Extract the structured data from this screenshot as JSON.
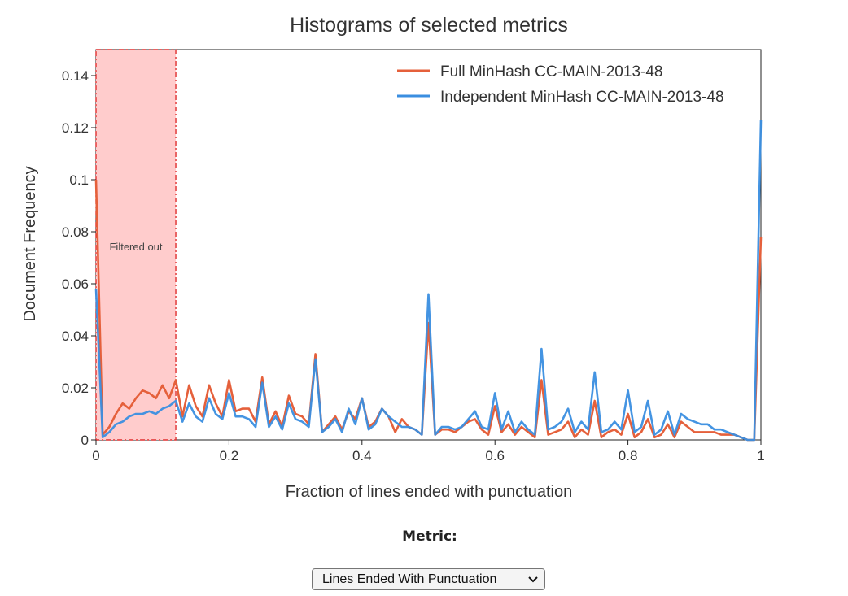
{
  "chart_data": {
    "type": "line",
    "title": "Histograms of selected metrics",
    "xlabel": "Fraction of lines ended with punctuation",
    "ylabel": "Document Frequency",
    "xlim": [
      0,
      1
    ],
    "ylim": [
      0,
      0.15
    ],
    "xticks": [
      0,
      0.2,
      0.4,
      0.6,
      0.8,
      1
    ],
    "xtick_labels": [
      "0",
      "0.2",
      "0.4",
      "0.6",
      "0.8",
      "1"
    ],
    "yticks": [
      0,
      0.02,
      0.04,
      0.06,
      0.08,
      0.1,
      0.12,
      0.14
    ],
    "ytick_labels": [
      "0",
      "0.02",
      "0.04",
      "0.06",
      "0.08",
      "0.1",
      "0.12",
      "0.14"
    ],
    "legend_position": "top-right",
    "filtered_region": {
      "x_start": 0,
      "x_end": 0.12,
      "label": "Filtered out",
      "color": "#ffcccc",
      "edge_color": "#e03030"
    },
    "series": [
      {
        "name": "Full MinHash CC-MAIN-2013-48",
        "color": "#e5603b",
        "x": [
          0,
          0.01,
          0.02,
          0.03,
          0.04,
          0.05,
          0.06,
          0.07,
          0.08,
          0.09,
          0.1,
          0.11,
          0.12,
          0.13,
          0.14,
          0.15,
          0.16,
          0.17,
          0.18,
          0.19,
          0.2,
          0.21,
          0.22,
          0.23,
          0.24,
          0.25,
          0.26,
          0.27,
          0.28,
          0.29,
          0.3,
          0.31,
          0.32,
          0.33,
          0.34,
          0.35,
          0.36,
          0.37,
          0.38,
          0.39,
          0.4,
          0.41,
          0.42,
          0.43,
          0.44,
          0.45,
          0.46,
          0.47,
          0.48,
          0.49,
          0.5,
          0.51,
          0.52,
          0.53,
          0.54,
          0.55,
          0.56,
          0.57,
          0.58,
          0.59,
          0.6,
          0.61,
          0.62,
          0.63,
          0.64,
          0.65,
          0.66,
          0.67,
          0.68,
          0.69,
          0.7,
          0.71,
          0.72,
          0.73,
          0.74,
          0.75,
          0.76,
          0.77,
          0.78,
          0.79,
          0.8,
          0.81,
          0.82,
          0.83,
          0.84,
          0.85,
          0.86,
          0.87,
          0.88,
          0.89,
          0.9,
          0.91,
          0.92,
          0.93,
          0.94,
          0.95,
          0.96,
          0.97,
          0.98,
          0.99,
          1.0
        ],
        "values": [
          0.1,
          0.002,
          0.005,
          0.01,
          0.014,
          0.012,
          0.016,
          0.019,
          0.018,
          0.016,
          0.021,
          0.016,
          0.023,
          0.009,
          0.021,
          0.013,
          0.009,
          0.021,
          0.014,
          0.009,
          0.023,
          0.011,
          0.012,
          0.012,
          0.007,
          0.024,
          0.006,
          0.011,
          0.005,
          0.017,
          0.01,
          0.009,
          0.006,
          0.033,
          0.003,
          0.006,
          0.009,
          0.004,
          0.011,
          0.008,
          0.016,
          0.005,
          0.007,
          0.012,
          0.009,
          0.003,
          0.008,
          0.005,
          0.004,
          0.002,
          0.045,
          0.002,
          0.004,
          0.004,
          0.003,
          0.005,
          0.007,
          0.008,
          0.004,
          0.002,
          0.013,
          0.003,
          0.006,
          0.002,
          0.005,
          0.003,
          0.001,
          0.023,
          0.002,
          0.003,
          0.004,
          0.007,
          0.001,
          0.004,
          0.002,
          0.015,
          0.001,
          0.003,
          0.004,
          0.002,
          0.01,
          0.001,
          0.003,
          0.008,
          0.001,
          0.002,
          0.006,
          0.001,
          0.007,
          0.005,
          0.003,
          0.003,
          0.003,
          0.003,
          0.002,
          0.002,
          0.002,
          0.001,
          0.0,
          0.0,
          0.078
        ]
      },
      {
        "name": "Independent MinHash CC-MAIN-2013-48",
        "color": "#3a8ee0",
        "x": [
          0,
          0.01,
          0.02,
          0.03,
          0.04,
          0.05,
          0.06,
          0.07,
          0.08,
          0.09,
          0.1,
          0.11,
          0.12,
          0.13,
          0.14,
          0.15,
          0.16,
          0.17,
          0.18,
          0.19,
          0.2,
          0.21,
          0.22,
          0.23,
          0.24,
          0.25,
          0.26,
          0.27,
          0.28,
          0.29,
          0.3,
          0.31,
          0.32,
          0.33,
          0.34,
          0.35,
          0.36,
          0.37,
          0.38,
          0.39,
          0.4,
          0.41,
          0.42,
          0.43,
          0.44,
          0.45,
          0.46,
          0.47,
          0.48,
          0.49,
          0.5,
          0.51,
          0.52,
          0.53,
          0.54,
          0.55,
          0.56,
          0.57,
          0.58,
          0.59,
          0.6,
          0.61,
          0.62,
          0.63,
          0.64,
          0.65,
          0.66,
          0.67,
          0.68,
          0.69,
          0.7,
          0.71,
          0.72,
          0.73,
          0.74,
          0.75,
          0.76,
          0.77,
          0.78,
          0.79,
          0.8,
          0.81,
          0.82,
          0.83,
          0.84,
          0.85,
          0.86,
          0.87,
          0.88,
          0.89,
          0.9,
          0.91,
          0.92,
          0.93,
          0.94,
          0.95,
          0.96,
          0.97,
          0.98,
          0.99,
          1.0
        ],
        "values": [
          0.058,
          0.001,
          0.003,
          0.006,
          0.007,
          0.009,
          0.01,
          0.01,
          0.011,
          0.01,
          0.012,
          0.013,
          0.015,
          0.007,
          0.014,
          0.009,
          0.007,
          0.016,
          0.01,
          0.008,
          0.018,
          0.009,
          0.009,
          0.008,
          0.005,
          0.022,
          0.005,
          0.009,
          0.004,
          0.014,
          0.008,
          0.007,
          0.005,
          0.031,
          0.003,
          0.005,
          0.008,
          0.003,
          0.012,
          0.006,
          0.016,
          0.004,
          0.006,
          0.012,
          0.009,
          0.007,
          0.005,
          0.005,
          0.004,
          0.002,
          0.056,
          0.002,
          0.005,
          0.005,
          0.004,
          0.005,
          0.008,
          0.011,
          0.005,
          0.004,
          0.018,
          0.004,
          0.011,
          0.003,
          0.007,
          0.004,
          0.002,
          0.035,
          0.004,
          0.005,
          0.007,
          0.012,
          0.003,
          0.007,
          0.004,
          0.026,
          0.003,
          0.004,
          0.007,
          0.004,
          0.019,
          0.003,
          0.005,
          0.015,
          0.002,
          0.004,
          0.011,
          0.002,
          0.01,
          0.008,
          0.007,
          0.006,
          0.006,
          0.004,
          0.004,
          0.003,
          0.002,
          0.001,
          0.0,
          0.0,
          0.123
        ]
      }
    ]
  },
  "controls": {
    "metric_label": "Metric:",
    "metric_selected": "Lines Ended With Punctuation",
    "chevron_icon": "chevron-down-icon"
  }
}
